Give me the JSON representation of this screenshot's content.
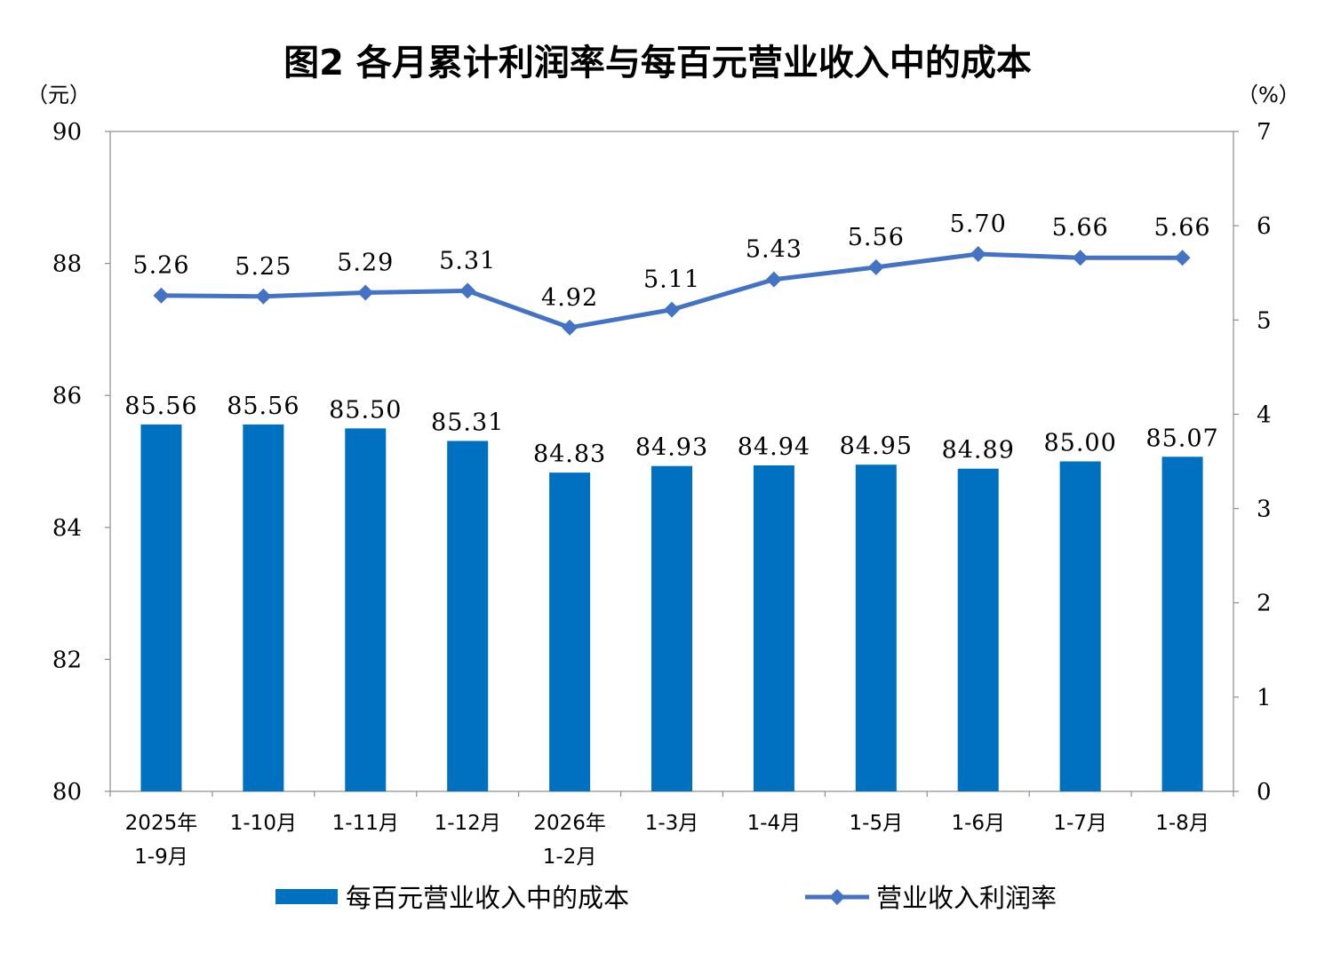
{
  "chart_data": {
    "type": "bar",
    "title": "图2  各月累计利润率与每百元营业收入中的成本",
    "left_axis_unit": "（元）",
    "right_axis_unit": "（%）",
    "categories": [
      [
        "2025年",
        "1-9月"
      ],
      [
        "1-10月"
      ],
      [
        "1-11月"
      ],
      [
        "1-12月"
      ],
      [
        "2026年",
        "1-2月"
      ],
      [
        "1-3月"
      ],
      [
        "1-4月"
      ],
      [
        "1-5月"
      ],
      [
        "1-6月"
      ],
      [
        "1-7月"
      ],
      [
        "1-8月"
      ]
    ],
    "series": [
      {
        "name": "每百元营业收入中的成本",
        "type": "bar",
        "axis": "left",
        "color": "#0070C0",
        "values": [
          85.56,
          85.56,
          85.5,
          85.31,
          84.83,
          84.93,
          84.94,
          84.95,
          84.89,
          85.0,
          85.07
        ],
        "labels": [
          "85.56",
          "85.56",
          "85.50",
          "85.31",
          "84.83",
          "84.93",
          "84.94",
          "84.95",
          "84.89",
          "85.00",
          "85.07"
        ]
      },
      {
        "name": "营业收入利润率",
        "type": "line",
        "marker": "diamond",
        "axis": "right",
        "color": "#4472C4",
        "values": [
          5.26,
          5.25,
          5.29,
          5.31,
          4.92,
          5.11,
          5.43,
          5.56,
          5.7,
          5.66,
          5.66
        ],
        "labels": [
          "5.26",
          "5.25",
          "5.29",
          "5.31",
          "4.92",
          "5.11",
          "5.43",
          "5.56",
          "5.70",
          "5.66",
          "5.66"
        ]
      }
    ],
    "left_axis": {
      "min": 80,
      "max": 90,
      "ticks": [
        "80",
        "82",
        "84",
        "86",
        "88",
        "90"
      ]
    },
    "right_axis": {
      "min": 0,
      "max": 7,
      "ticks": [
        "0",
        "1",
        "2",
        "3",
        "4",
        "5",
        "6",
        "7"
      ]
    },
    "grid": false,
    "legend_position": "bottom"
  }
}
